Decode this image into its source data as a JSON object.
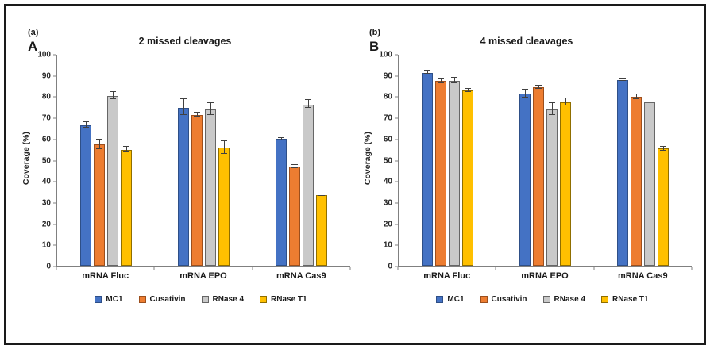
{
  "figure": {
    "background": "#ffffff",
    "border_color": "#1a1a1a",
    "error_bar_color": "#404040",
    "axis_color": "#808080"
  },
  "chart_data": [
    {
      "type": "bar",
      "panel_tag": "(a)",
      "panel_letter": "A",
      "title": "2 missed cleavages",
      "xlabel": "",
      "ylabel": "Coverage (%)",
      "ylim": [
        0,
        100
      ],
      "ytick_step": 10,
      "grid": false,
      "legend_position": "bottom",
      "categories": [
        "mRNA Fluc",
        "mRNA EPO",
        "mRNA Cas9"
      ],
      "series": [
        {
          "name": "MC1",
          "color": "#4472C4",
          "border": "#2E4F87",
          "values": [
            66.5,
            75,
            60
          ],
          "errors": [
            1.5,
            4,
            0.7
          ]
        },
        {
          "name": "Cusativin",
          "color": "#ED7D31",
          "border": "#9C4F1D",
          "values": [
            57.5,
            71.5,
            47
          ],
          "errors": [
            2.5,
            1.2,
            1
          ]
        },
        {
          "name": "RNase 4",
          "color": "#C9C9C9",
          "border": "#666666",
          "values": [
            80.5,
            74,
            76.5
          ],
          "errors": [
            2,
            3,
            2
          ]
        },
        {
          "name": "RNase T1",
          "color": "#FFC000",
          "border": "#8F6E00",
          "values": [
            55,
            56,
            33.5
          ],
          "errors": [
            1.5,
            3,
            0.7
          ]
        }
      ]
    },
    {
      "type": "bar",
      "panel_tag": "(b)",
      "panel_letter": "B",
      "title": "4 missed cleavages",
      "xlabel": "",
      "ylabel": "Coverage (%)",
      "ylim": [
        0,
        100
      ],
      "ytick_step": 10,
      "grid": false,
      "legend_position": "bottom",
      "categories": [
        "mRNA Fluc",
        "mRNA EPO",
        "mRNA Cas9"
      ],
      "series": [
        {
          "name": "MC1",
          "color": "#4472C4",
          "border": "#2E4F87",
          "values": [
            91.5,
            81.5,
            88
          ],
          "errors": [
            1,
            2,
            0.7
          ]
        },
        {
          "name": "Cusativin",
          "color": "#ED7D31",
          "border": "#9C4F1D",
          "values": [
            87.5,
            84.5,
            80
          ],
          "errors": [
            1.2,
            1,
            1.2
          ]
        },
        {
          "name": "RNase 4",
          "color": "#C9C9C9",
          "border": "#666666",
          "values": [
            87.5,
            74,
            77.5
          ],
          "errors": [
            1.5,
            3,
            2
          ]
        },
        {
          "name": "RNase T1",
          "color": "#FFC000",
          "border": "#8F6E00",
          "values": [
            83,
            77.5,
            55.5
          ],
          "errors": [
            1,
            1.8,
            1
          ]
        }
      ]
    }
  ]
}
